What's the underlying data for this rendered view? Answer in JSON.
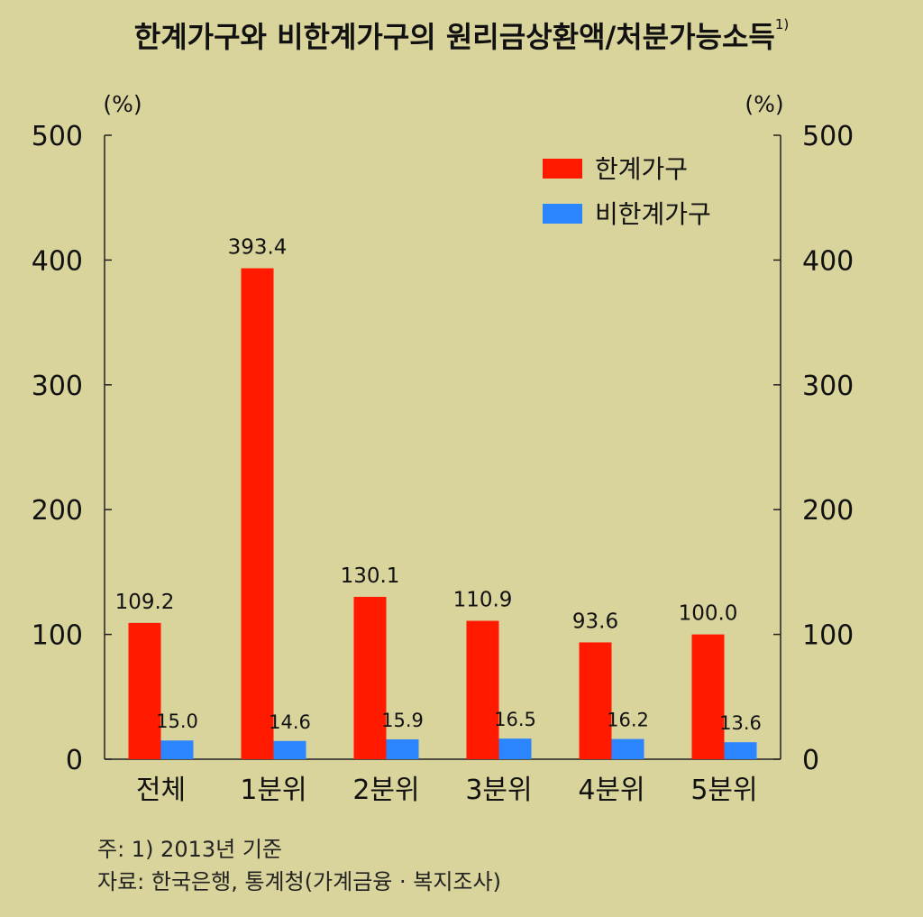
{
  "title": "한계가구와 비한계가구의 원리금상환액/처분가능소득",
  "title_footnote": "1)",
  "notes": {
    "note": "주: 1) 2013년 기준",
    "source": "자료: 한국은행, 통계청(가계금융 · 복지조사)"
  },
  "colors": {
    "background": "#d9d49c",
    "marginal": "#ff1a00",
    "non_marginal": "#2a85ff"
  },
  "chart_data": {
    "type": "bar",
    "title": "한계가구와 비한계가구의 원리금상환액/처분가능소득",
    "categories": [
      "전체",
      "1분위",
      "2분위",
      "3분위",
      "4분위",
      "5분위"
    ],
    "series": [
      {
        "name": "한계가구",
        "values": [
          109.2,
          393.4,
          130.1,
          110.9,
          93.6,
          100.0
        ],
        "labels": [
          "109.2",
          "393.4",
          "130.1",
          "110.9",
          "93.6",
          "100.0"
        ]
      },
      {
        "name": "비한계가구",
        "values": [
          15.0,
          14.6,
          15.9,
          16.5,
          16.2,
          13.6
        ],
        "labels": [
          "15.0",
          "14.6",
          "15.9",
          "16.5",
          "16.2",
          "13.6"
        ]
      }
    ],
    "ylabel_left": "(%)",
    "ylabel_right": "(%)",
    "ylim": [
      0,
      500
    ],
    "yticks": [
      0,
      100,
      200,
      300,
      400,
      500
    ],
    "legend_position": "top-right",
    "grid": false
  }
}
